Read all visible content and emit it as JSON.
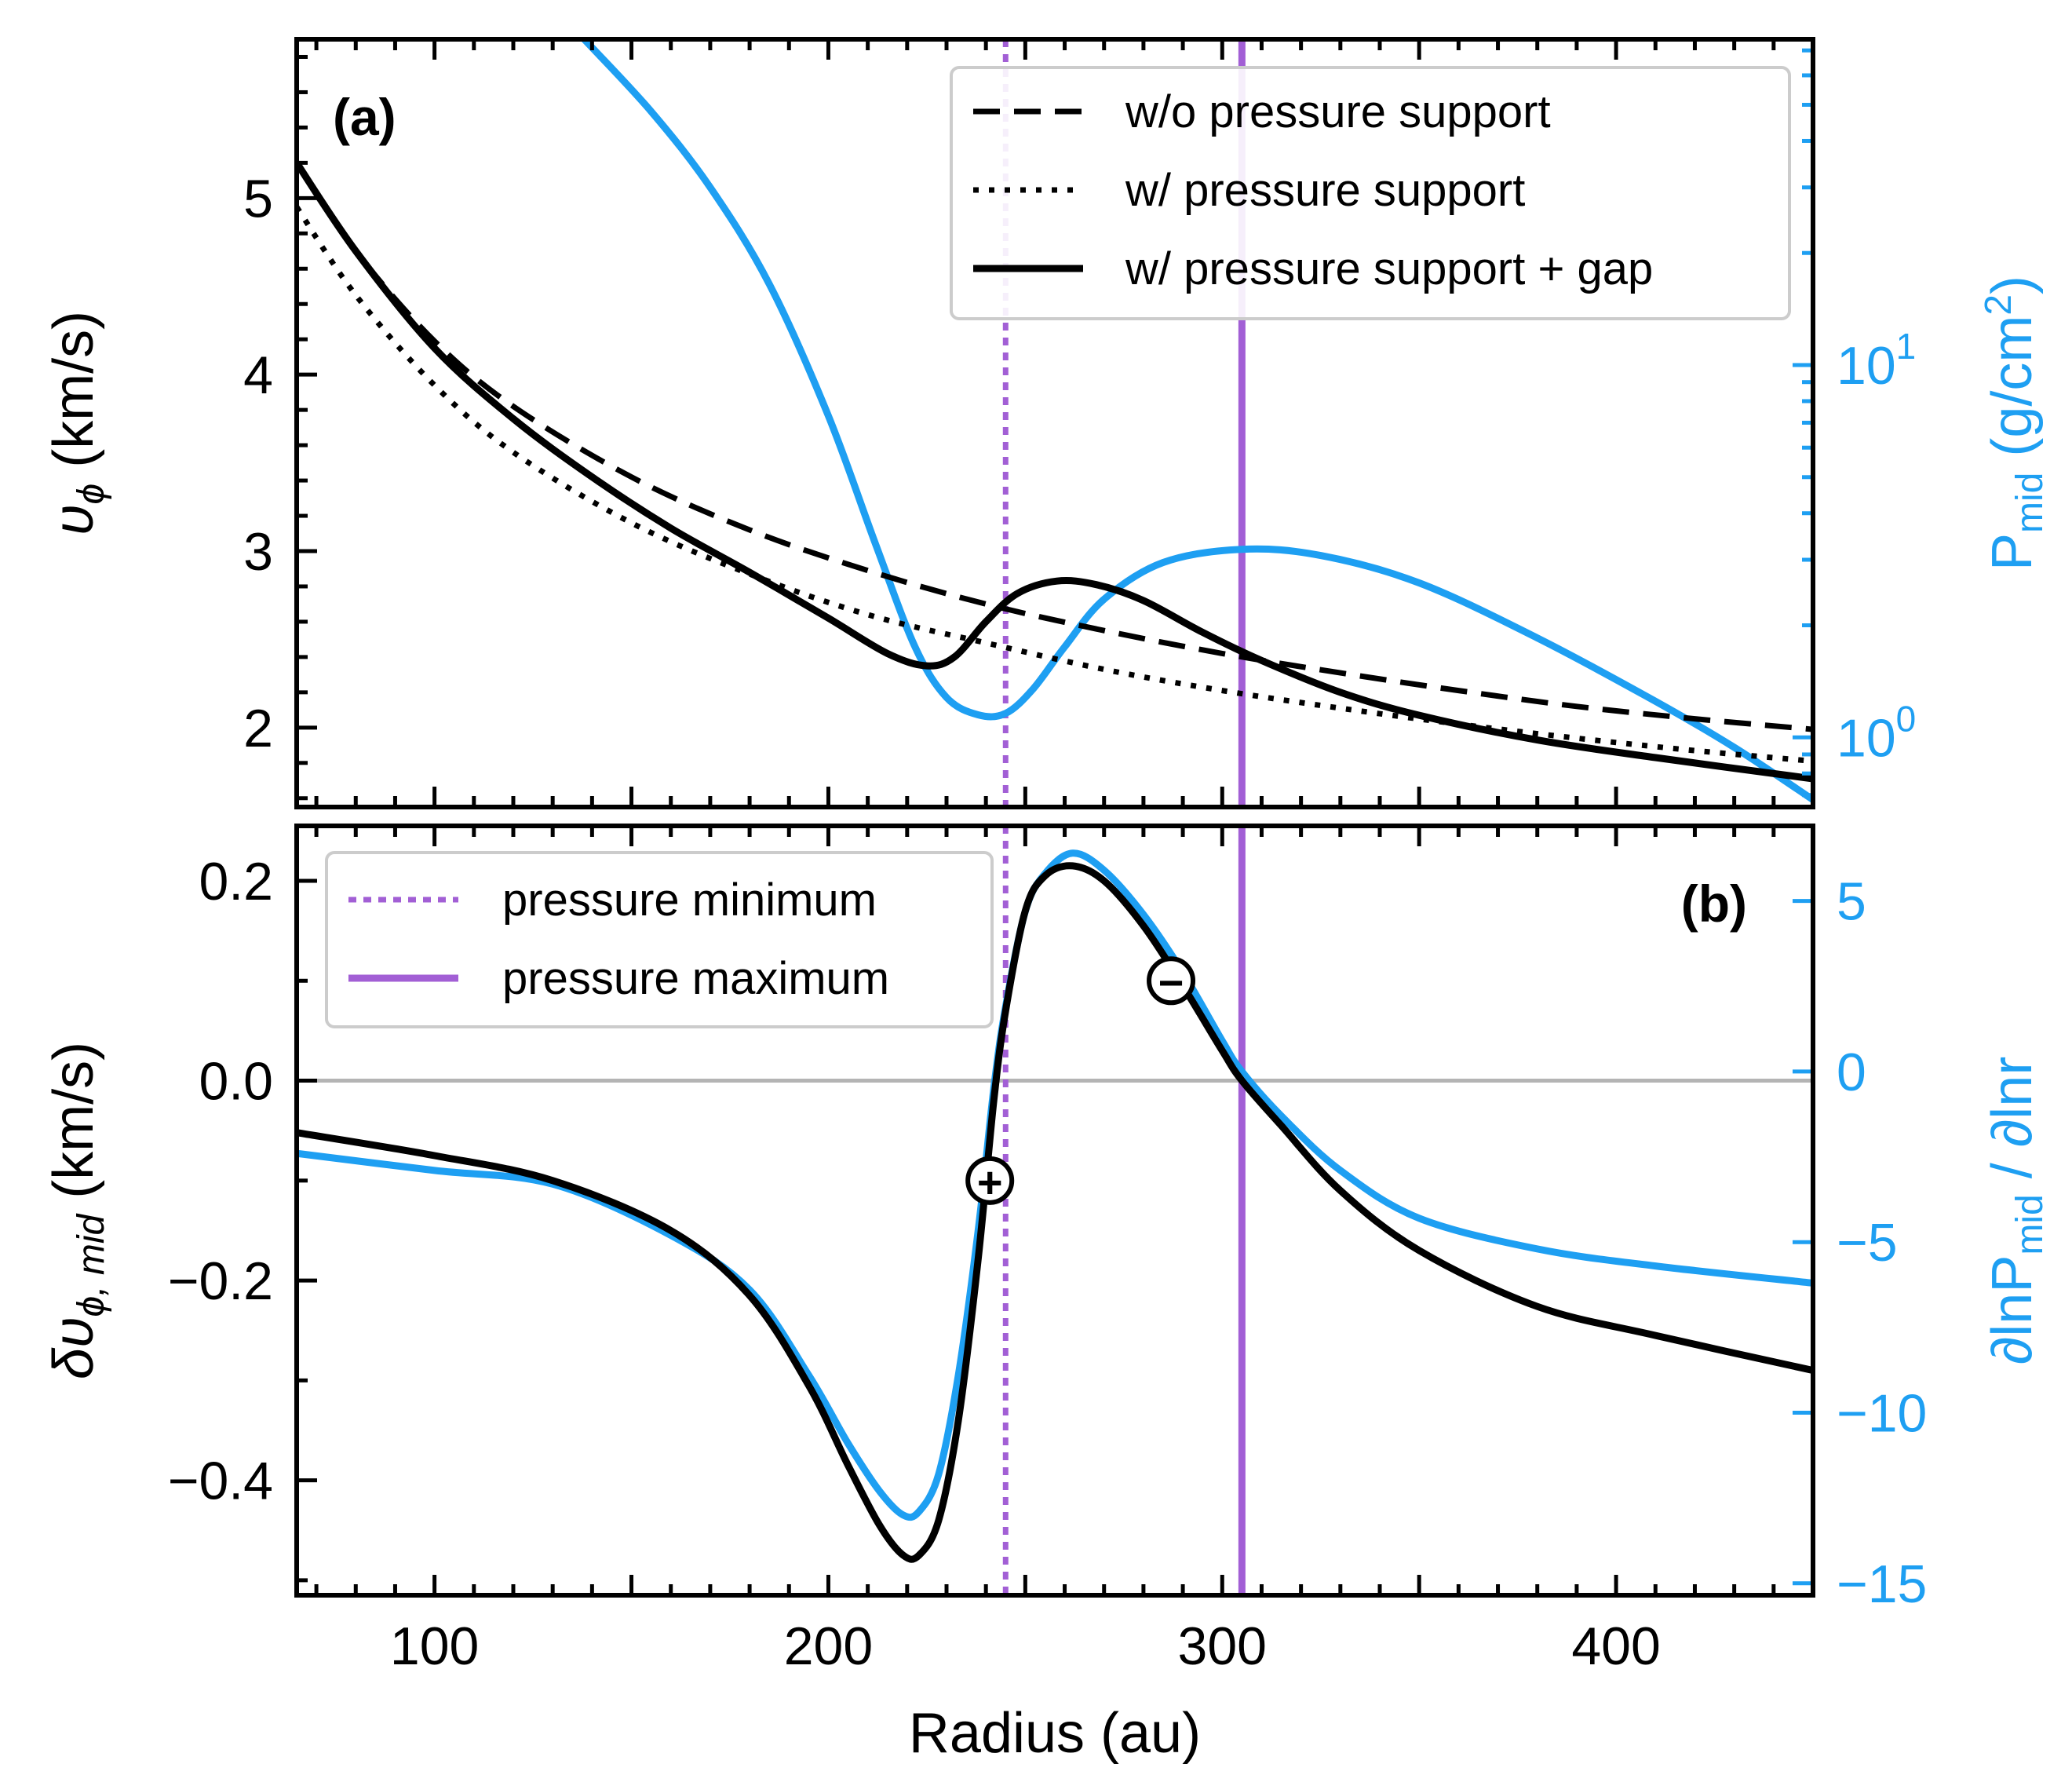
{
  "colors": {
    "black": "#000000",
    "pressure_curve": "#1E9FF2",
    "pressure_lines": "#A25FD5",
    "zero_line": "#B4B4B4",
    "legend_edge": "#CCCCCC"
  },
  "xaxis": {
    "label": "Radius (au)",
    "range": [
      65,
      450
    ],
    "ticks": [
      "100",
      "200",
      "300",
      "400"
    ]
  },
  "markers": {
    "plus": "+",
    "minus": "−"
  },
  "chart_data": [
    {
      "panel": "(a)",
      "type": "line",
      "ylabel_left": "υ",
      "ylabel_left_sub": "ϕ",
      "ylabel_left_unit": " (km/s)",
      "ylim_left": [
        1.55,
        5.9
      ],
      "yticks_left": [
        "2",
        "3",
        "4",
        "5"
      ],
      "ylabel_right_main": "P",
      "ylabel_right_sub": "mid",
      "ylabel_right_unit": " (g/cm",
      "ylabel_right_sup": "2",
      "ylabel_right_close": ")",
      "yscale_right": "log",
      "ylim_right": [
        0.65,
        75
      ],
      "yticks_right": [
        {
          "base": "10",
          "exp": "0",
          "value": 1
        },
        {
          "base": "10",
          "exp": "1",
          "value": 10
        }
      ],
      "legend_position": "top-right",
      "series": [
        {
          "name": "w/o pressure support",
          "style": "dashed",
          "axis": "left",
          "x": [
            65,
            80,
            100,
            120,
            150,
            180,
            210,
            240,
            270,
            300,
            330,
            360,
            390,
            420,
            450
          ],
          "y": [
            5.2,
            4.7,
            4.19,
            3.82,
            3.42,
            3.12,
            2.89,
            2.7,
            2.55,
            2.42,
            2.31,
            2.21,
            2.12,
            2.05,
            1.99
          ]
        },
        {
          "name": "w/ pressure support",
          "style": "dotted",
          "axis": "left",
          "x": [
            65,
            80,
            100,
            120,
            150,
            180,
            210,
            240,
            270,
            300,
            330,
            360,
            390,
            420,
            450
          ],
          "y": [
            4.95,
            4.45,
            3.94,
            3.56,
            3.16,
            2.87,
            2.64,
            2.48,
            2.33,
            2.21,
            2.11,
            2.02,
            1.94,
            1.87,
            1.81
          ]
        },
        {
          "name": "w/ pressure support + gap",
          "style": "solid",
          "axis": "left",
          "x": [
            65,
            80,
            100,
            120,
            140,
            160,
            180,
            200,
            215,
            225,
            232,
            240,
            248,
            258,
            268,
            280,
            295,
            310,
            330,
            350,
            380,
            410,
            450
          ],
          "y": [
            5.2,
            4.7,
            4.15,
            3.75,
            3.42,
            3.13,
            2.88,
            2.62,
            2.42,
            2.35,
            2.4,
            2.6,
            2.76,
            2.83,
            2.81,
            2.72,
            2.54,
            2.38,
            2.2,
            2.07,
            1.93,
            1.83,
            1.71
          ]
        },
        {
          "name": "P_mid",
          "style": "solid",
          "axis": "right",
          "x": [
            138,
            155,
            170,
            185,
            200,
            212,
            222,
            230,
            238,
            245,
            252,
            260,
            270,
            285,
            305,
            325,
            350,
            380,
            410,
            430,
            450
          ],
          "y": [
            75,
            48,
            30,
            16.5,
            7.3,
            3.3,
            1.75,
            1.28,
            1.15,
            1.16,
            1.35,
            1.75,
            2.35,
            2.95,
            3.2,
            3.08,
            2.6,
            1.85,
            1.25,
            0.94,
            0.68
          ]
        }
      ]
    },
    {
      "panel": "(b)",
      "type": "line",
      "ylabel_left": "δυ",
      "ylabel_left_sub": "ϕ, mid",
      "ylabel_left_unit": " (km/s)",
      "ylim_left": [
        -0.515,
        0.255
      ],
      "yticks_left": [
        "0.2",
        "0.0",
        "−0.2",
        "−0.4"
      ],
      "ylabel_right_main": "∂lnP",
      "ylabel_right_sub": "mid",
      "ylabel_right_unit": " / ∂lnr",
      "ylim_right": [
        -15.35,
        7.2
      ],
      "yticks_right": [
        "5",
        "0",
        "−5",
        "−10",
        "−15"
      ],
      "legend_position": "top-left",
      "series": [
        {
          "name": "δυ_ϕ,mid",
          "style": "solid",
          "axis": "left",
          "x": [
            65,
            100,
            130,
            160,
            180,
            195,
            205,
            213,
            219,
            223,
            228,
            233,
            238,
            242,
            245,
            250,
            255,
            262,
            270,
            280,
            290,
            300,
            305,
            315,
            330,
            350,
            380,
            410,
            450
          ],
          "y": [
            -0.052,
            -0.075,
            -0.1,
            -0.15,
            -0.215,
            -0.305,
            -0.385,
            -0.445,
            -0.475,
            -0.475,
            -0.44,
            -0.34,
            -0.18,
            -0.02,
            0.07,
            0.17,
            0.205,
            0.215,
            0.2,
            0.155,
            0.095,
            0.03,
            0.0,
            -0.045,
            -0.11,
            -0.17,
            -0.226,
            -0.255,
            -0.29
          ]
        },
        {
          "name": "∂lnP_mid/∂lnr",
          "style": "solid",
          "axis": "right",
          "x": [
            65,
            100,
            130,
            160,
            180,
            195,
            205,
            213,
            219,
            223,
            228,
            233,
            238,
            242,
            245,
            250,
            255,
            262,
            270,
            280,
            290,
            300,
            305,
            315,
            330,
            350,
            380,
            410,
            450
          ],
          "y": [
            -2.4,
            -2.9,
            -3.3,
            -4.8,
            -6.4,
            -8.9,
            -10.9,
            -12.3,
            -13.0,
            -12.9,
            -11.8,
            -8.9,
            -4.7,
            -0.5,
            1.9,
            4.7,
            5.8,
            6.4,
            5.9,
            4.6,
            2.9,
            0.9,
            0.0,
            -1.3,
            -2.9,
            -4.3,
            -5.2,
            -5.7,
            -6.2
          ]
        },
        {
          "name": "pressure minimum",
          "style": "dotted",
          "x_value": 245
        },
        {
          "name": "pressure maximum",
          "style": "solid",
          "x_value": 305
        }
      ],
      "annotations": [
        {
          "symbol": "plus",
          "x": 241,
          "y": -0.1
        },
        {
          "symbol": "minus",
          "x": 287,
          "y": 0.1
        }
      ]
    }
  ]
}
